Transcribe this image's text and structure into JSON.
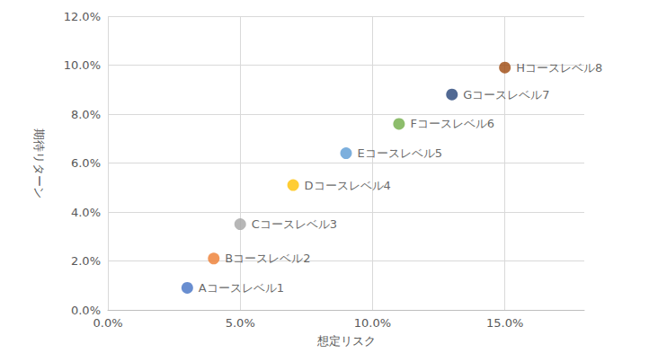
{
  "chart_data": {
    "type": "scatter",
    "x_label": "想定リスク",
    "y_label": "期待リターン",
    "x": [
      3,
      4,
      5,
      7,
      9,
      11,
      13,
      15
    ],
    "values": [
      0.9,
      2.1,
      3.5,
      5.1,
      6.4,
      7.6,
      8.8,
      9.9
    ],
    "labels": [
      "Aコースレベル1",
      "Bコースレベル2",
      "Cコースレベル3",
      "Dコースレベル4",
      "Eコースレベル5",
      "Fコースレベル6",
      "Gコースレベル7",
      "Hコースレベル8"
    ],
    "colors": [
      "#4472c4",
      "#ed7d31",
      "#a5a5a5",
      "#ffc000",
      "#5b9bd5",
      "#70ad47",
      "#264478",
      "#9e480e"
    ],
    "xlim": [
      0,
      18
    ],
    "xticks": [
      {
        "value": 0,
        "label": "0.0%"
      },
      {
        "value": 5,
        "label": "5.0%"
      },
      {
        "value": 10,
        "label": "10.0%"
      },
      {
        "value": 15,
        "label": "15.0%"
      }
    ],
    "ylim": [
      0,
      12
    ],
    "yticks": [
      {
        "value": 0,
        "label": "0.0%"
      },
      {
        "value": 2,
        "label": "2.0%"
      },
      {
        "value": 4,
        "label": "4.0%"
      },
      {
        "value": 6,
        "label": "6.0%"
      },
      {
        "value": 8,
        "label": "8.0%"
      },
      {
        "value": 10,
        "label": "10.0%"
      },
      {
        "value": 12,
        "label": "12.0%"
      }
    ],
    "grid": true,
    "marker": "circle"
  }
}
